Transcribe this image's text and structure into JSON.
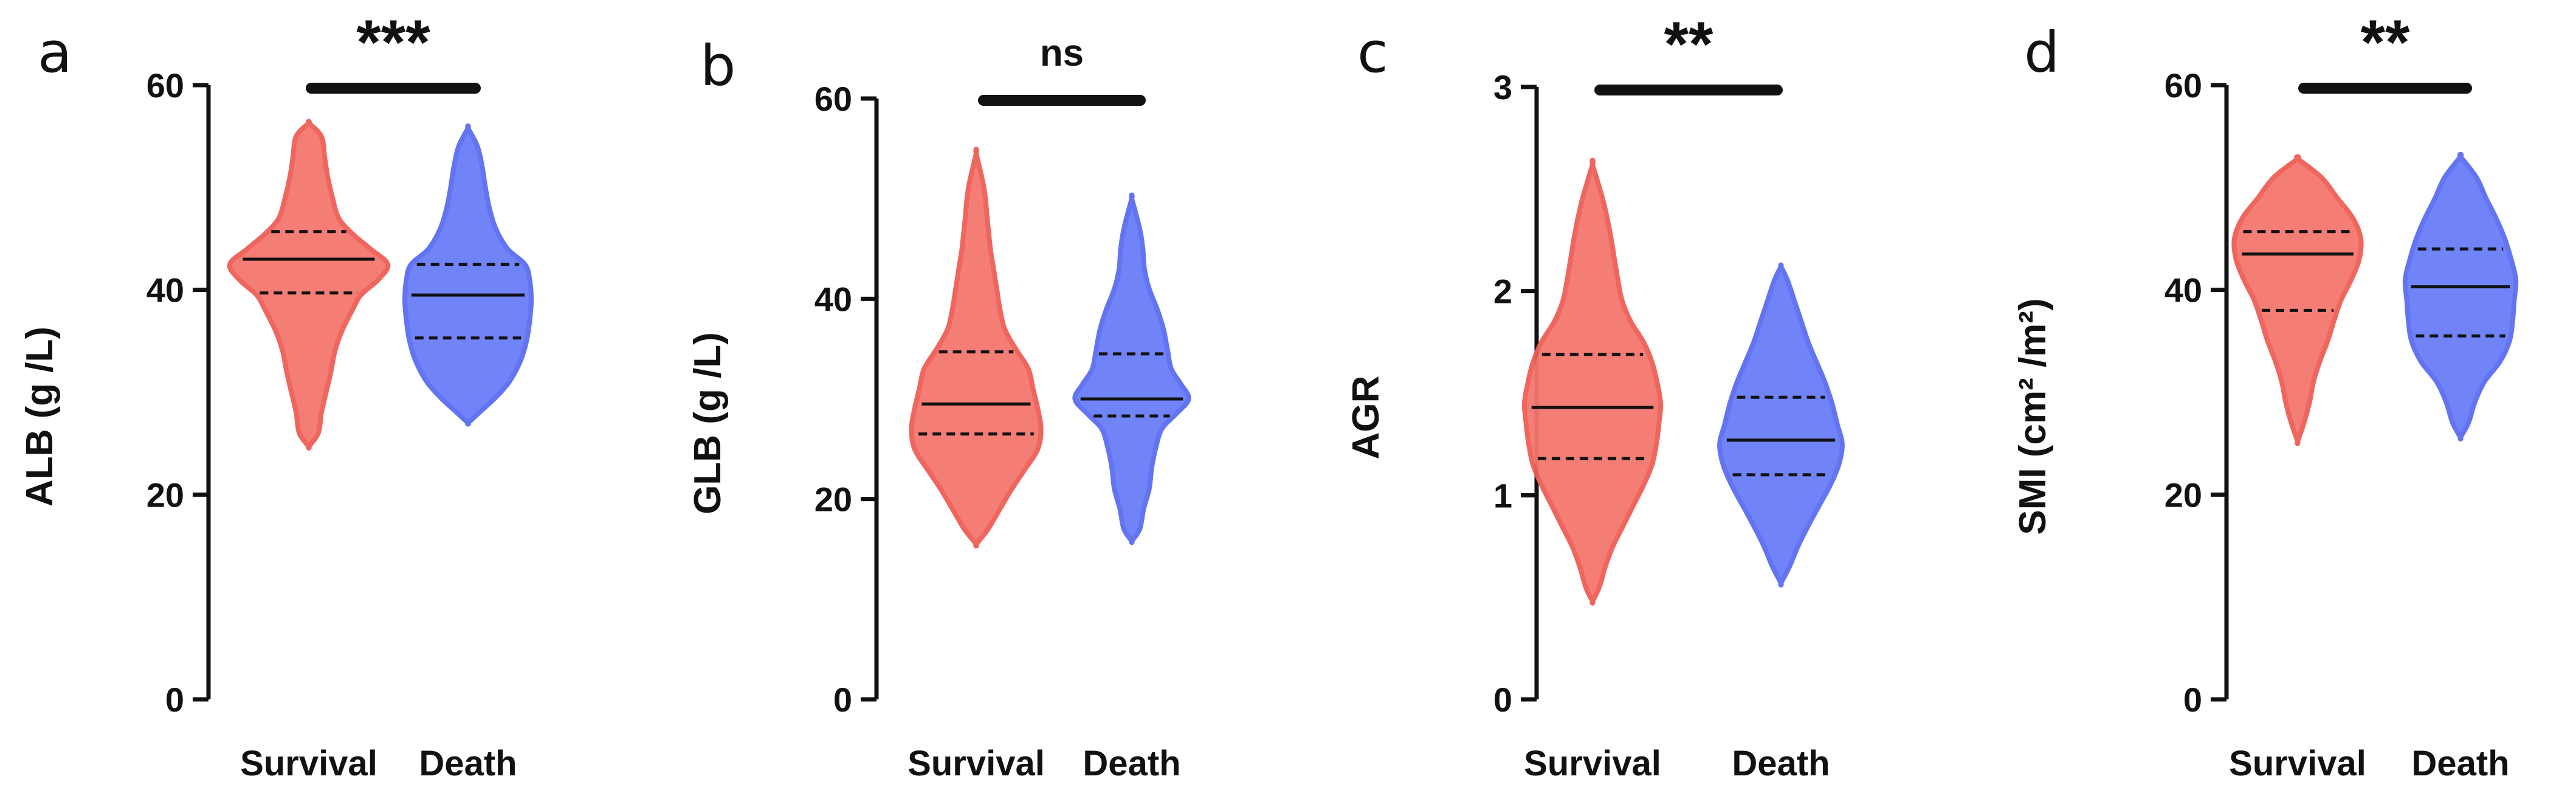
{
  "figure_title": "",
  "colors": {
    "survival_fill": "#f4776f",
    "survival_edge": "#ee5e56",
    "death_fill": "#6a7ef7",
    "death_edge": "#5a6df2",
    "axis": "#111111"
  },
  "chart_data": [
    {
      "type": "violin",
      "panel": "a",
      "ylabel": "ALB (g /L)",
      "ylim": [
        0,
        60
      ],
      "yticks": [
        0,
        20,
        40,
        60
      ],
      "categories": [
        "Survival",
        "Death"
      ],
      "significance": "***",
      "series": [
        {
          "name": "Survival",
          "median": 43,
          "q1": 39.7,
          "q3": 45.7,
          "profile": [
            [
              24.7,
              0.0
            ],
            [
              26,
              0.12
            ],
            [
              28,
              0.16
            ],
            [
              30,
              0.22
            ],
            [
              32,
              0.28
            ],
            [
              34,
              0.33
            ],
            [
              36,
              0.42
            ],
            [
              38,
              0.55
            ],
            [
              39.5,
              0.66
            ],
            [
              41,
              0.88
            ],
            [
              42.5,
              1.0
            ],
            [
              44,
              0.78
            ],
            [
              45.5,
              0.55
            ],
            [
              47,
              0.38
            ],
            [
              49,
              0.3
            ],
            [
              51,
              0.24
            ],
            [
              53,
              0.2
            ],
            [
              55,
              0.16
            ],
            [
              56.3,
              0.0
            ]
          ]
        },
        {
          "name": "Death",
          "median": 39.5,
          "q1": 35.3,
          "q3": 42.5,
          "profile": [
            [
              27,
              0.0
            ],
            [
              28,
              0.14
            ],
            [
              29.5,
              0.35
            ],
            [
              31,
              0.52
            ],
            [
              33,
              0.66
            ],
            [
              35,
              0.74
            ],
            [
              37,
              0.78
            ],
            [
              39,
              0.8
            ],
            [
              41,
              0.78
            ],
            [
              42.5,
              0.72
            ],
            [
              44,
              0.5
            ],
            [
              46,
              0.35
            ],
            [
              48,
              0.27
            ],
            [
              50,
              0.22
            ],
            [
              52,
              0.18
            ],
            [
              54,
              0.12
            ],
            [
              55.8,
              0.0
            ]
          ]
        }
      ]
    },
    {
      "type": "violin",
      "panel": "b",
      "ylabel": "GLB (g /L)",
      "ylim": [
        0,
        60
      ],
      "yticks": [
        0,
        20,
        40,
        60
      ],
      "categories": [
        "Survival",
        "Death"
      ],
      "significance": "ns",
      "series": [
        {
          "name": "Survival",
          "median": 29.5,
          "q1": 26.5,
          "q3": 34.7,
          "profile": [
            [
              15.5,
              0.0
            ],
            [
              17,
              0.15
            ],
            [
              19,
              0.3
            ],
            [
              21,
              0.45
            ],
            [
              23,
              0.62
            ],
            [
              25,
              0.78
            ],
            [
              27,
              0.82
            ],
            [
              29,
              0.78
            ],
            [
              31,
              0.72
            ],
            [
              33,
              0.66
            ],
            [
              35,
              0.5
            ],
            [
              37,
              0.36
            ],
            [
              39,
              0.3
            ],
            [
              41,
              0.26
            ],
            [
              43,
              0.22
            ],
            [
              45,
              0.18
            ],
            [
              48,
              0.14
            ],
            [
              51,
              0.1
            ],
            [
              54.5,
              0.0
            ]
          ]
        },
        {
          "name": "Death",
          "median": 30,
          "q1": 28.3,
          "q3": 34.5,
          "profile": [
            [
              15.8,
              0.0
            ],
            [
              17,
              0.1
            ],
            [
              19,
              0.15
            ],
            [
              21,
              0.22
            ],
            [
              23,
              0.25
            ],
            [
              25,
              0.3
            ],
            [
              27,
              0.38
            ],
            [
              28.5,
              0.56
            ],
            [
              30,
              0.72
            ],
            [
              31.5,
              0.62
            ],
            [
              33,
              0.5
            ],
            [
              35,
              0.45
            ],
            [
              37,
              0.4
            ],
            [
              39,
              0.32
            ],
            [
              41,
              0.22
            ],
            [
              43,
              0.16
            ],
            [
              45,
              0.14
            ],
            [
              47,
              0.1
            ],
            [
              50,
              0.0
            ]
          ]
        }
      ]
    },
    {
      "type": "violin",
      "panel": "c",
      "ylabel": "AGR",
      "ylim": [
        0,
        3
      ],
      "yticks": [
        0,
        1,
        2,
        3
      ],
      "categories": [
        "Survival",
        "Death"
      ],
      "significance": "**",
      "series": [
        {
          "name": "Survival",
          "median": 1.43,
          "q1": 1.18,
          "q3": 1.69,
          "profile": [
            [
              0.48,
              0.0
            ],
            [
              0.55,
              0.08
            ],
            [
              0.65,
              0.15
            ],
            [
              0.75,
              0.24
            ],
            [
              0.85,
              0.36
            ],
            [
              0.95,
              0.48
            ],
            [
              1.05,
              0.6
            ],
            [
              1.15,
              0.7
            ],
            [
              1.25,
              0.75
            ],
            [
              1.35,
              0.78
            ],
            [
              1.45,
              0.8
            ],
            [
              1.55,
              0.76
            ],
            [
              1.65,
              0.7
            ],
            [
              1.75,
              0.6
            ],
            [
              1.85,
              0.45
            ],
            [
              1.95,
              0.35
            ],
            [
              2.05,
              0.3
            ],
            [
              2.15,
              0.26
            ],
            [
              2.3,
              0.2
            ],
            [
              2.45,
              0.12
            ],
            [
              2.62,
              0.0
            ]
          ]
        },
        {
          "name": "Death",
          "median": 1.27,
          "q1": 1.1,
          "q3": 1.48,
          "profile": [
            [
              0.57,
              0.0
            ],
            [
              0.65,
              0.1
            ],
            [
              0.75,
              0.2
            ],
            [
              0.85,
              0.32
            ],
            [
              0.95,
              0.45
            ],
            [
              1.05,
              0.58
            ],
            [
              1.15,
              0.68
            ],
            [
              1.25,
              0.72
            ],
            [
              1.35,
              0.66
            ],
            [
              1.45,
              0.6
            ],
            [
              1.55,
              0.52
            ],
            [
              1.65,
              0.42
            ],
            [
              1.75,
              0.32
            ],
            [
              1.85,
              0.24
            ],
            [
              1.95,
              0.16
            ],
            [
              2.05,
              0.08
            ],
            [
              2.12,
              0.0
            ]
          ]
        }
      ]
    },
    {
      "type": "violin",
      "panel": "d",
      "ylabel": "SMI (cm² /m²)",
      "ylim": [
        0,
        60
      ],
      "yticks": [
        0,
        20,
        40,
        60
      ],
      "categories": [
        "Survival",
        "Death"
      ],
      "significance": "**",
      "series": [
        {
          "name": "Survival",
          "median": 43.5,
          "q1": 38,
          "q3": 45.7,
          "profile": [
            [
              25.2,
              0.0
            ],
            [
              27,
              0.08
            ],
            [
              29,
              0.15
            ],
            [
              31,
              0.2
            ],
            [
              33,
              0.28
            ],
            [
              35,
              0.38
            ],
            [
              37,
              0.46
            ],
            [
              39,
              0.55
            ],
            [
              41,
              0.68
            ],
            [
              43,
              0.78
            ],
            [
              45,
              0.8
            ],
            [
              47,
              0.7
            ],
            [
              49,
              0.5
            ],
            [
              51,
              0.3
            ],
            [
              52.8,
              0.0
            ]
          ]
        },
        {
          "name": "Death",
          "median": 40.3,
          "q1": 35.5,
          "q3": 44,
          "profile": [
            [
              25.6,
              0.0
            ],
            [
              27,
              0.1
            ],
            [
              29,
              0.18
            ],
            [
              31,
              0.3
            ],
            [
              33,
              0.5
            ],
            [
              35,
              0.62
            ],
            [
              37,
              0.66
            ],
            [
              39,
              0.68
            ],
            [
              41,
              0.7
            ],
            [
              43,
              0.64
            ],
            [
              45,
              0.56
            ],
            [
              47,
              0.45
            ],
            [
              49,
              0.32
            ],
            [
              51,
              0.2
            ],
            [
              53,
              0.0
            ]
          ]
        }
      ]
    }
  ]
}
